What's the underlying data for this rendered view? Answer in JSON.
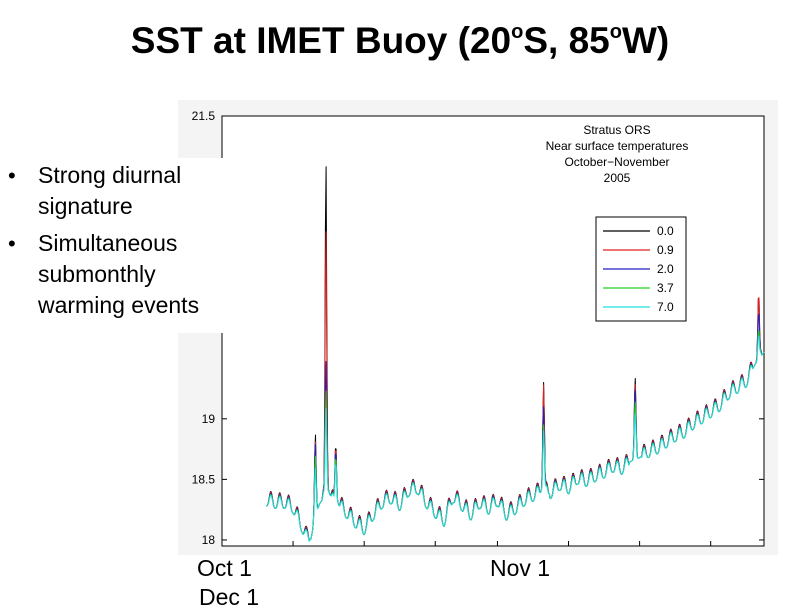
{
  "slide": {
    "title_main": "SST at IMET Buoy (20",
    "title_sup1": "o",
    "title_mid": "S, 85",
    "title_sup2": "o",
    "title_end": "W)",
    "bullets": [
      "Strong diurnal signature",
      "Simultaneous submonthly warming events"
    ],
    "date_labels": [
      "Oct 1",
      "Nov 1",
      "Dec 1"
    ]
  },
  "chart_data": {
    "type": "line",
    "title": "Stratus ORS",
    "subtitle_lines": [
      "Stratus ORS",
      "Near surface temperatures",
      "October−November",
      "2005"
    ],
    "xlabel": "",
    "ylabel": "",
    "xlim": [
      0,
      61
    ],
    "ylim": [
      17.95,
      21.5
    ],
    "yticks": [
      18,
      18.5,
      19,
      21.5
    ],
    "ytick_labels": [
      "18",
      "18.5",
      "19",
      "21.5"
    ],
    "grid": false,
    "legend_position": "upper-right",
    "legend": [
      "0.0",
      "0.9",
      "2.0",
      "3.7",
      "7.0"
    ],
    "colors": [
      "#000000",
      "#e02020",
      "#2020c0",
      "#20d020",
      "#20e0e0"
    ],
    "base_series": {
      "x": [
        5,
        6,
        7,
        8,
        9,
        9.5,
        10,
        10.5,
        11,
        11.5,
        12,
        12.5,
        13,
        14,
        15,
        16,
        17,
        18,
        19,
        20,
        21,
        22,
        23,
        24,
        25,
        26,
        27,
        28,
        29,
        30,
        31,
        32,
        33,
        34,
        35,
        36,
        37,
        38,
        39,
        40,
        41,
        42,
        43,
        44,
        45,
        46,
        47,
        48,
        49,
        50,
        51,
        52,
        53,
        54,
        55,
        56,
        57,
        58,
        59,
        60,
        61
      ],
      "y": [
        18.32,
        18.3,
        18.3,
        18.26,
        18.1,
        18.02,
        18.0,
        18.2,
        18.3,
        18.35,
        18.4,
        18.32,
        18.3,
        18.22,
        18.14,
        18.08,
        18.2,
        18.3,
        18.34,
        18.28,
        18.4,
        18.42,
        18.3,
        18.22,
        18.15,
        18.35,
        18.28,
        18.2,
        18.3,
        18.25,
        18.32,
        18.2,
        18.25,
        18.32,
        18.36,
        18.4,
        18.38,
        18.45,
        18.42,
        18.5,
        18.48,
        18.52,
        18.55,
        18.6,
        18.58,
        18.65,
        18.68,
        18.72,
        18.75,
        18.8,
        18.85,
        18.88,
        18.95,
        19.0,
        19.05,
        19.1,
        19.2,
        19.25,
        19.3,
        19.45,
        19.55
      ]
    },
    "diurnal_amplitude_C": 0.13,
    "peak_events": [
      {
        "x": 10.5,
        "depth_peaks": [
          18.88,
          18.82,
          18.8,
          18.7,
          18.6
        ]
      },
      {
        "x": 11.7,
        "depth_peaks": [
          21.15,
          20.6,
          19.5,
          19.25,
          19.1
        ]
      },
      {
        "x": 12.8,
        "depth_peaks": [
          18.8,
          18.78,
          18.75,
          18.7,
          18.65
        ]
      },
      {
        "x": 36.2,
        "depth_peaks": [
          19.3,
          19.28,
          19.1,
          18.95,
          18.9
        ]
      },
      {
        "x": 46.5,
        "depth_peaks": [
          19.35,
          19.3,
          19.25,
          19.15,
          19.05
        ]
      },
      {
        "x": 60.4,
        "depth_peaks": [
          20.05,
          20.05,
          19.9,
          19.75,
          19.7
        ]
      }
    ]
  }
}
